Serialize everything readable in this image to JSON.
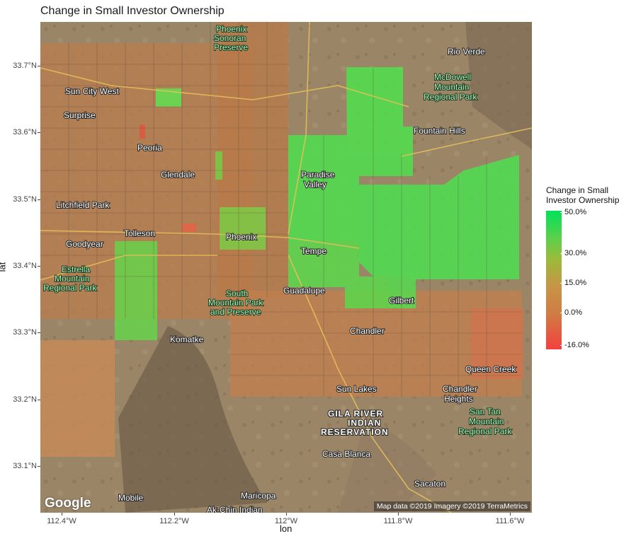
{
  "title": "Change in Small Investor Ownership",
  "axes": {
    "xlabel": "lon",
    "ylabel": "lat",
    "x_ticks": [
      "112.4°W",
      "112.2°W",
      "112°W",
      "111.8°W",
      "111.6°W"
    ],
    "y_ticks": [
      "33.7°N",
      "33.6°N",
      "33.5°N",
      "33.4°N",
      "33.3°N",
      "33.2°N",
      "33.1°N"
    ]
  },
  "legend": {
    "title_line1": "Change in Small",
    "title_line2": "Investor Ownership",
    "ticks": [
      "50.0%",
      "30.0%",
      "15.0%",
      "0.0%",
      "-16.0%"
    ],
    "colors": {
      "high": "#00e25a",
      "mid": "#c89446",
      "low": "#f4403e"
    }
  },
  "map": {
    "logo": "Google",
    "attribution": "Map data ©2019  Imagery ©2019 TerraMetrics",
    "places": {
      "phoenix_sonoran": [
        "Phoenix",
        "Sonoran",
        "Preserve"
      ],
      "rio_verde": "Rio Verde",
      "mcdowell": [
        "McDowell",
        "Mountain",
        "Regional Park"
      ],
      "sun_city_west": "Sun City West",
      "surprise": "Surprise",
      "peoria": "Peoria",
      "fountain_hills": "Fountain Hills",
      "glendale": "Glendale",
      "paradise_valley": [
        "Paradise",
        "Valley"
      ],
      "litchfield_park": "Litchfield Park",
      "tolleson": "Tolleson",
      "phoenix": "Phoenix",
      "goodyear": "Goodyear",
      "tempe": "Tempe",
      "estrella": [
        "Estrella",
        "Mountain",
        "Regional Park"
      ],
      "south_mountain": [
        "South",
        "Mountain Park",
        "and Preserve"
      ],
      "guadalupe": "Guadalupe",
      "gilbert": "Gilbert",
      "komatke": "Komatke",
      "chandler": "Chandler",
      "queen_creek": "Queen Creek",
      "sun_lakes": "Sun Lakes",
      "chandler_heights": [
        "Chandler",
        "Heights"
      ],
      "gila_river": [
        "GILA RIVER",
        "INDIAN",
        "RESERVATION"
      ],
      "san_tan": [
        "San Tan",
        "Mountain",
        "Regional Park"
      ],
      "casa_blanca": "Casa Blanca",
      "sacaton": "Sacaton",
      "mobile": "Mobile",
      "maricopa": "Maricopa",
      "ak_chin": "Ak-Chin Indian"
    }
  }
}
